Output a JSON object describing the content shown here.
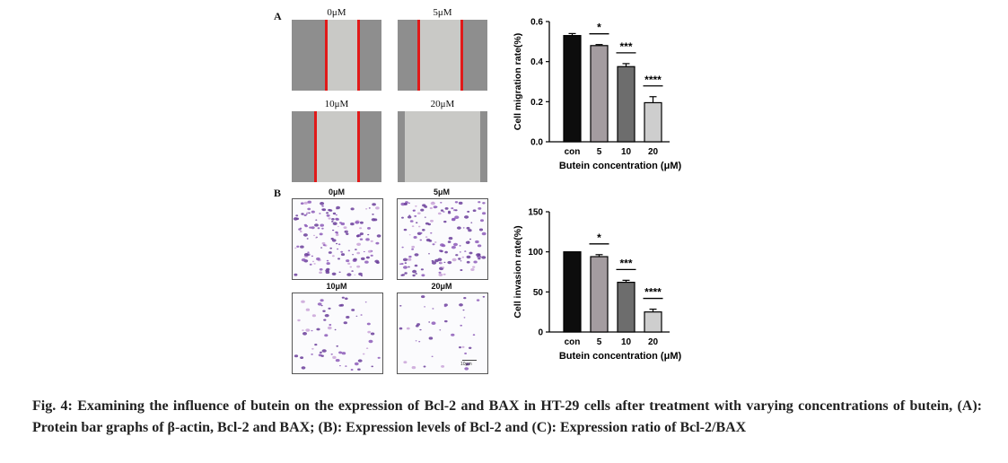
{
  "panel_a": {
    "letter": "A",
    "images": [
      {
        "label": "0μM",
        "gap_fraction": 0.34
      },
      {
        "label": "5μM",
        "gap_fraction": 0.64
      },
      {
        "label": "10μM",
        "gap_fraction": 0.44
      },
      {
        "label": "20μM",
        "gap_fraction": 0.82
      }
    ]
  },
  "panel_b": {
    "letter": "B",
    "images": [
      {
        "label": "0μM",
        "cell_density": 1.0
      },
      {
        "label": "5μM",
        "cell_density": 0.95
      },
      {
        "label": "10μM",
        "cell_density": 0.4
      },
      {
        "label": "20μM",
        "cell_density": 0.25
      }
    ],
    "scale_bar": "10μm"
  },
  "chart_data": [
    {
      "type": "bar",
      "categories": [
        "con",
        "5",
        "10",
        "20"
      ],
      "values": [
        0.53,
        0.48,
        0.375,
        0.195
      ],
      "errors": [
        0.01,
        0.005,
        0.015,
        0.03
      ],
      "significance": [
        "",
        "*",
        "***",
        "****"
      ],
      "colors": [
        "#0d0d0d",
        "#a49ca0",
        "#6d6d6d",
        "#cecece"
      ],
      "xlabel": "Butein concentration (μM)",
      "ylabel": "Cell migration rate(%)",
      "ylim": [
        0,
        0.6
      ],
      "yticks": [
        "0.0",
        "0.2",
        "0.4",
        "0.6"
      ]
    },
    {
      "type": "bar",
      "categories": [
        "con",
        "5",
        "10",
        "20"
      ],
      "values": [
        100,
        94,
        62,
        25
      ],
      "errors": [
        0,
        2.5,
        2.5,
        3.5
      ],
      "significance": [
        "",
        "*",
        "***",
        "****"
      ],
      "colors": [
        "#0d0d0d",
        "#a49ca0",
        "#6d6d6d",
        "#cecece"
      ],
      "xlabel": "Butein concentration (μM)",
      "ylabel": "Cell invasion rate(%)",
      "ylim": [
        0,
        150
      ],
      "yticks": [
        "0",
        "50",
        "100",
        "150"
      ]
    }
  ],
  "caption": "Fig. 4: Examining the influence of butein on the expression of Bcl-2 and BAX in HT-29 cells after treatment with varying concentrations of butein, (A): Protein bar graphs of β-actin, Bcl-2 and BAX; (B): Expression levels of Bcl-2 and (C): Expression ratio of Bcl-2/BAX"
}
